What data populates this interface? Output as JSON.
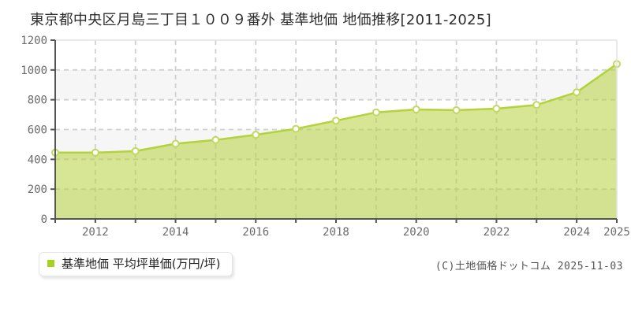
{
  "title": "東京都中央区月島三丁目１００９番外 基準地価 地価推移[2011-2025]",
  "footer": {
    "copyright": "(C)土地価格ドットコム 2025-11-03"
  },
  "chart_data": {
    "type": "area",
    "title": "東京都中央区月島三丁目１００９番外 基準地価 地価推移[2011-2025]",
    "x": [
      2011,
      2012,
      2013,
      2014,
      2015,
      2016,
      2017,
      2018,
      2019,
      2020,
      2021,
      2022,
      2023,
      2024,
      2025
    ],
    "series": [
      {
        "name": "基準地価 平均坪単価(万円/坪)",
        "values": [
          445,
          445,
          455,
          505,
          530,
          565,
          605,
          660,
          715,
          735,
          730,
          740,
          765,
          850,
          1040
        ]
      }
    ],
    "xlabel": "",
    "ylabel": "",
    "ylim": [
      0,
      1200
    ],
    "ytick_step": 200,
    "yticks": [
      0,
      200,
      400,
      600,
      800,
      1000,
      1200
    ],
    "xticks_labeled": [
      2012,
      2014,
      2016,
      2018,
      2020,
      2022,
      2024,
      2025
    ],
    "grid": true,
    "legend_position": "bottom-left",
    "colors": {
      "line": "#b2d33b",
      "area_fill_rgba": "rgba(180,210,60,0.55)",
      "marker_fill": "#ffffff",
      "marker_stroke": "#c0d95e",
      "legend_marker": "#a5d221",
      "band_gray": "#f6f6f6",
      "gridline": "#d0d0d0",
      "axis": "#555555",
      "plot_border_light": "#e2e2e2",
      "tick_label": "#6b6b6b"
    }
  }
}
